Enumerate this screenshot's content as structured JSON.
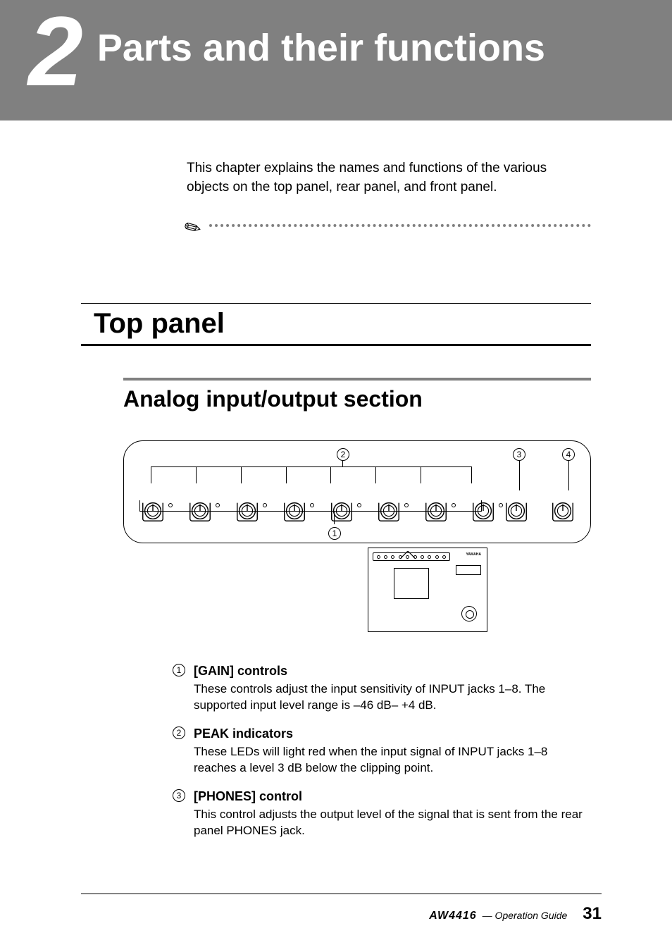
{
  "chapter": {
    "number": "2",
    "title": "Parts and their func­tions"
  },
  "intro": "This chapter explains the names and functions of the various objects on the top panel, rear panel, and front panel.",
  "section": {
    "title": "Top panel"
  },
  "subsection": {
    "title": "Analog input/output section"
  },
  "diagram": {
    "callouts": {
      "c1": "1",
      "c2": "2",
      "c3": "3",
      "c4": "4"
    },
    "knob_count_main": 8,
    "knob_count_right": 2,
    "locator": {
      "brand": "YAMAHA"
    },
    "colors": {
      "stroke": "#000000",
      "bg": "#ffffff"
    }
  },
  "descriptions": [
    {
      "num": "1",
      "heading": "[GAIN] controls",
      "body": "These controls adjust the input sensitivity of INPUT jacks 1–8. The supported input level range is –46 dB– +4 dB."
    },
    {
      "num": "2",
      "heading": "PEAK indicators",
      "body": "These LEDs will light red when the input signal of INPUT jacks 1–8 reaches a level 3 dB below the clipping point."
    },
    {
      "num": "3",
      "heading": "[PHONES] control",
      "body": "This control adjusts the output level of the signal that is sent from the rear panel PHONES jack."
    }
  ],
  "footer": {
    "model": "AW4416",
    "guide": "— Operation Guide",
    "page": "31"
  }
}
